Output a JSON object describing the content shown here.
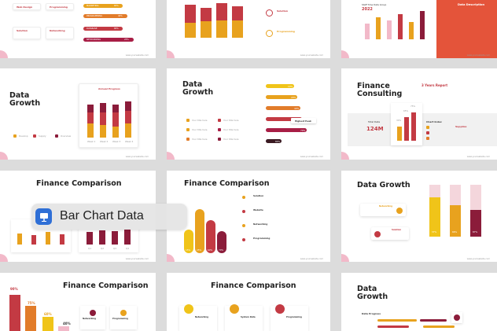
{
  "colors": {
    "red": "#c33a43",
    "orange": "#e8a21e",
    "maroon": "#8b1c3a",
    "pink": "#f2b9c9",
    "yellow": "#f0c419",
    "blue": "#2f6fd6"
  },
  "app_badge": {
    "label": "Bar Chart Data",
    "icon": "keynote-icon"
  },
  "footer_url": "www.yourwebsite.com",
  "s1": {
    "tags": [
      "Web Design",
      "Programming",
      "Solution",
      "Networking"
    ],
    "pills": [
      "MARKETING",
      "PROGRAMMING",
      "DATABASE",
      "NETWORKING"
    ],
    "pct": [
      "65%",
      "40%",
      "85%",
      "25%"
    ]
  },
  "s2": {
    "labels": [
      "Solution",
      "Programming"
    ]
  },
  "s3": {
    "title": "Staff Time Data Group",
    "year": "2022",
    "desc_title": "Data Description"
  },
  "s4": {
    "title": "Data Growth",
    "chart_title": "Annual Progress",
    "legend": [
      "Develop",
      "Supply",
      "Overview"
    ],
    "x": [
      "Week 1",
      "Week 2",
      "Week 3",
      "Week 4"
    ]
  },
  "s5": {
    "title": "Data Growth",
    "bars": [
      "10%",
      "20%",
      "40%",
      "60%",
      "70%",
      "80%"
    ],
    "popup": "Highest Peak",
    "legend": [
      "Your title here",
      "Your title here",
      "Your title here",
      "Your title here",
      "Your title here",
      "Your title here"
    ]
  },
  "s6": {
    "title": "Finance Consulting",
    "subtitle": "3 Years Report",
    "total_label": "Total Data",
    "total_value": "124M",
    "ratio": [
      "30%",
      "65%",
      "75%"
    ],
    "index": "Chart Index",
    "supplies": "Supplies"
  },
  "s7": {
    "title": "Finance Comparison",
    "x": [
      "Q1",
      "Q2",
      "Q3",
      "Q4"
    ]
  },
  "s8": {
    "title": "Finance Comparison",
    "bubbles": [
      "15%",
      "25%",
      "60%",
      "70%"
    ],
    "items": [
      "Solution",
      "Website",
      "Networking",
      "Programming"
    ]
  },
  "s9": {
    "title": "Data Growth",
    "cards": [
      "Networking",
      "Solution"
    ],
    "pct": [
      "37%",
      "66%",
      "87%"
    ]
  },
  "s10": {
    "title": "Finance Comparison",
    "pct": [
      "90%",
      "75%",
      "60%",
      "40%"
    ],
    "items": [
      "Networking",
      "Programming"
    ]
  },
  "s11": {
    "title": "Finance Comparison",
    "items": [
      "Networking",
      "System Data",
      "Programming"
    ]
  },
  "s12": {
    "title": "Data Growth",
    "progress": "Data Progress"
  }
}
